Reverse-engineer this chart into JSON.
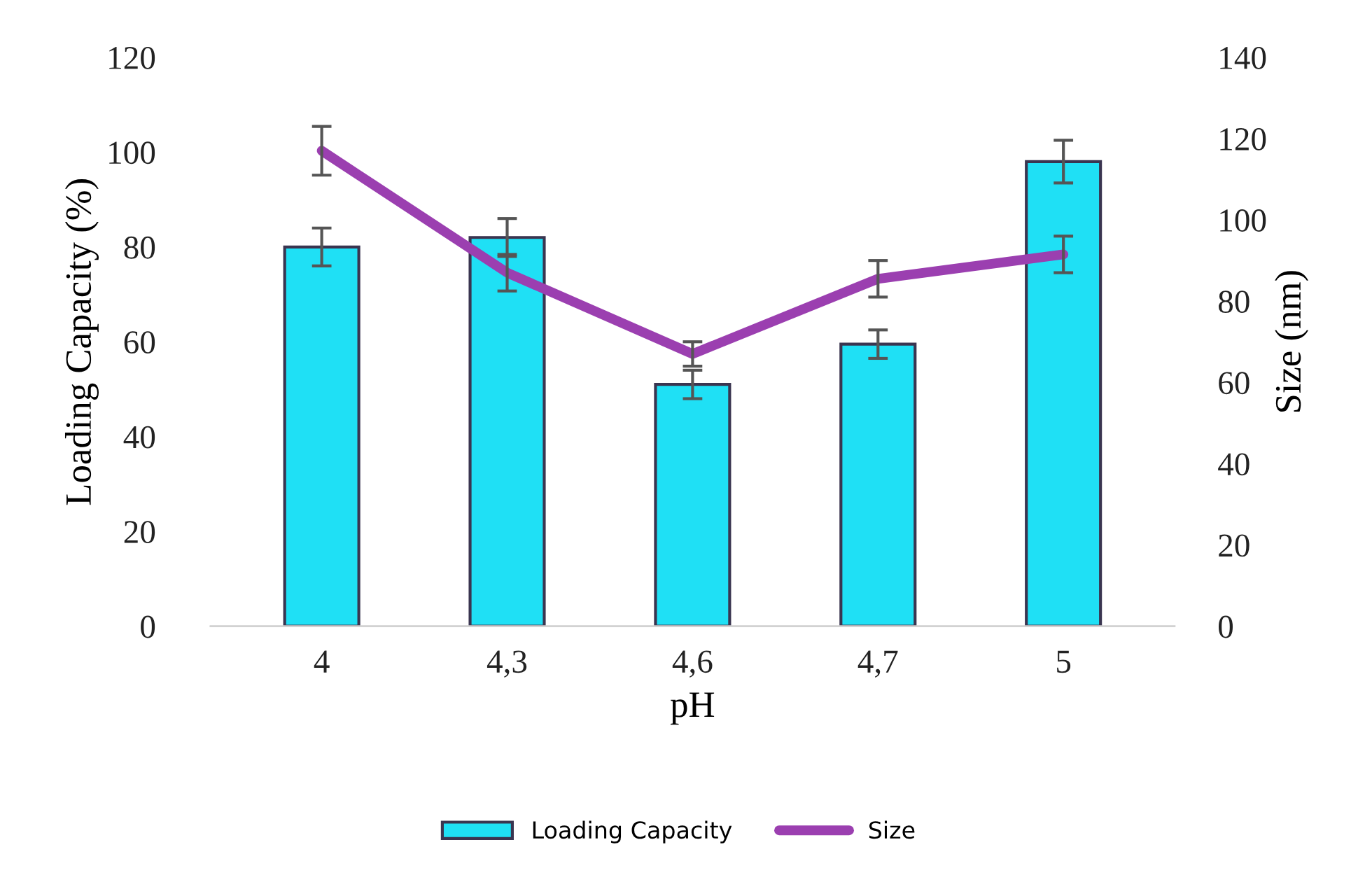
{
  "chart_data": {
    "type": "bar",
    "xlabel": "pH",
    "ylabel": "Loading Capacity (%)",
    "y2label": "Size (nm)",
    "categories": [
      "4",
      "4,3",
      "4,6",
      "4,7",
      "5"
    ],
    "series": [
      {
        "name": "Loading Capacity",
        "color": "#1fe0f5",
        "values": [
          80,
          82,
          51,
          59.5,
          98
        ],
        "errors": [
          4,
          4,
          3,
          3,
          4.5
        ]
      },
      {
        "name": "Size",
        "type": "line",
        "axis": "y2",
        "color": "#9b3fb0",
        "values": [
          117,
          87,
          67,
          85.5,
          91.5
        ],
        "errors": [
          6,
          4.5,
          3,
          4.5,
          4.5
        ]
      }
    ],
    "ylim": [
      0,
      120
    ],
    "yticks": [
      0,
      20,
      40,
      60,
      80,
      100,
      120
    ],
    "y2lim": [
      0,
      140
    ],
    "y2ticks": [
      0,
      20,
      40,
      60,
      80,
      100,
      120,
      140
    ],
    "grid": false,
    "legend": "bottom",
    "marker": "none",
    "line_style": "solid"
  }
}
